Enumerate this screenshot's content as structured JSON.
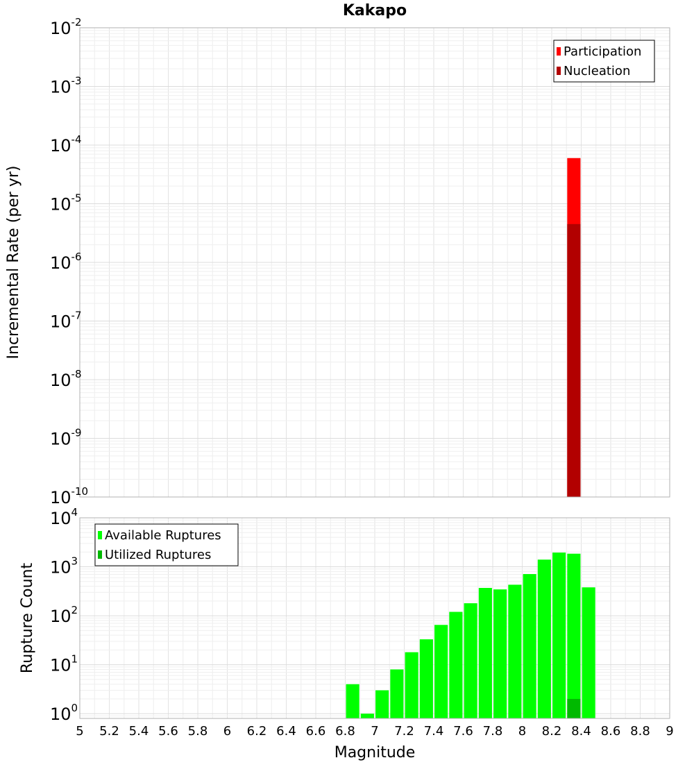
{
  "chart_data": [
    {
      "type": "bar",
      "title": "Kakapo",
      "xlabel": "",
      "ylabel": "Incremental Rate (per yr)",
      "y_scale": "log",
      "xlim": [
        5,
        9
      ],
      "ylim": [
        1e-10,
        0.01
      ],
      "y_tick_exponents": [
        "-10",
        "-9",
        "-8",
        "-7",
        "-6",
        "-5",
        "-4",
        "-3",
        "-2"
      ],
      "grid": true,
      "legend_position": "top-right",
      "bar_width": 0.09,
      "series": [
        {
          "name": "Participation",
          "color": "#ff0000",
          "x": [
            8.35
          ],
          "values": [
            6e-05
          ]
        },
        {
          "name": "Nucleation",
          "color": "#b20000",
          "x": [
            8.35
          ],
          "values": [
            4.5e-06
          ]
        }
      ]
    },
    {
      "type": "bar",
      "title": "",
      "xlabel": "Magnitude",
      "ylabel": "Rupture Count",
      "y_scale": "log",
      "xlim": [
        5,
        9
      ],
      "ylim": [
        0.8,
        10000
      ],
      "y_tick_exponents": [
        "0",
        "1",
        "2",
        "3",
        "4"
      ],
      "x_ticks": [
        "5",
        "5.2",
        "5.4",
        "5.6",
        "5.8",
        "6",
        "6.2",
        "6.4",
        "6.6",
        "6.8",
        "7",
        "7.2",
        "7.4",
        "7.6",
        "7.8",
        "8",
        "8.2",
        "8.4",
        "8.6",
        "8.8",
        "9"
      ],
      "grid": true,
      "legend_position": "top-left",
      "bar_width": 0.09,
      "series": [
        {
          "name": "Available Ruptures",
          "color": "#00ff00",
          "x": [
            6.85,
            6.95,
            7.05,
            7.15,
            7.25,
            7.35,
            7.45,
            7.55,
            7.65,
            7.75,
            7.85,
            7.95,
            8.05,
            8.15,
            8.25,
            8.35,
            8.45
          ],
          "values": [
            4,
            1,
            3,
            8,
            18,
            33,
            65,
            120,
            180,
            370,
            345,
            430,
            710,
            1400,
            1950,
            1850,
            380
          ]
        },
        {
          "name": "Utilized Ruptures",
          "color": "#00b900",
          "x": [
            8.35
          ],
          "values": [
            2
          ]
        }
      ]
    }
  ]
}
